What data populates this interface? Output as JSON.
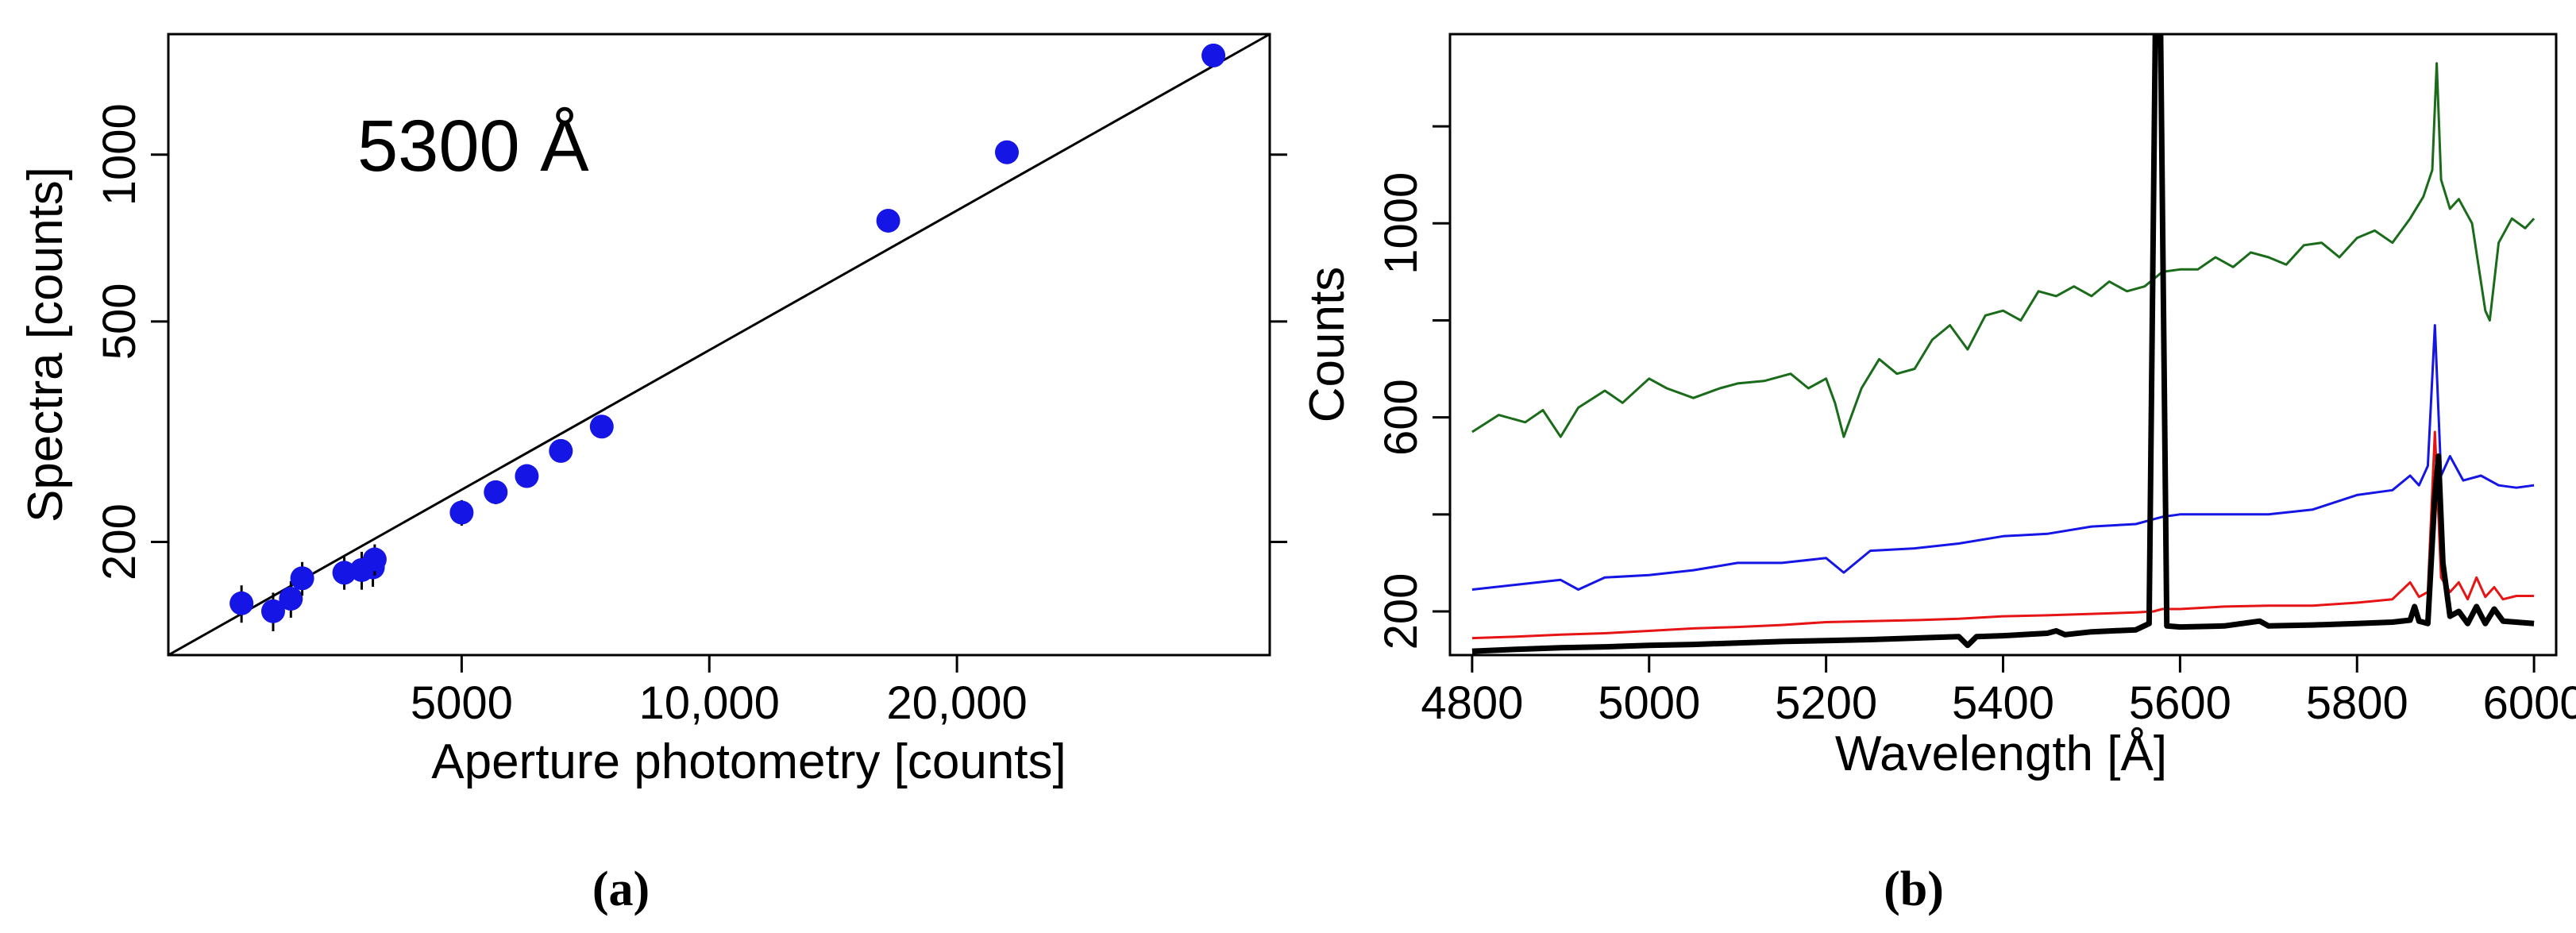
{
  "charts": {
    "a": {
      "caption": "(a)",
      "annotation": "5300 Å",
      "xlabel": "Aperture photometry [counts]",
      "ylabel": "Spectra [counts]",
      "xticks": [
        {
          "value": 5000,
          "label": "5000"
        },
        {
          "value": 10000,
          "label": "10,000"
        },
        {
          "value": 20000,
          "label": "20,000"
        }
      ],
      "yticks": [
        {
          "value": 200,
          "label": "200"
        },
        {
          "value": 500,
          "label": "500"
        },
        {
          "value": 1000,
          "label": "1000"
        }
      ]
    },
    "b": {
      "caption": "(b)",
      "xlabel": "Wavelength [Å]",
      "ylabel": "Counts",
      "xticks": [
        {
          "value": 4800,
          "label": "4800"
        },
        {
          "value": 5000,
          "label": "5000"
        },
        {
          "value": 5200,
          "label": "5200"
        },
        {
          "value": 5400,
          "label": "5400"
        },
        {
          "value": 5600,
          "label": "5600"
        },
        {
          "value": 5800,
          "label": "5800"
        },
        {
          "value": 6000,
          "label": "6000"
        }
      ],
      "yticks": [
        {
          "value": 200,
          "label": "200"
        },
        {
          "value": 400,
          "label": ""
        },
        {
          "value": 600,
          "label": "600"
        },
        {
          "value": 800,
          "label": ""
        },
        {
          "value": 1000,
          "label": "1000"
        },
        {
          "value": 1200,
          "label": ""
        }
      ]
    }
  },
  "chart_data": [
    {
      "type": "scatter",
      "title": "",
      "annotation": "5300 Å",
      "xlabel": "Aperture photometry [counts]",
      "ylabel": "Spectra [counts]",
      "xscale": "log",
      "yscale": "log",
      "xlim": [
        2200,
        48000
      ],
      "ylim": [
        125,
        1650
      ],
      "grid": false,
      "points": [
        {
          "x": 2700,
          "y": 155,
          "err": 12
        },
        {
          "x": 2950,
          "y": 150,
          "err": 12
        },
        {
          "x": 3100,
          "y": 158,
          "err": 12
        },
        {
          "x": 3200,
          "y": 172,
          "err": 12
        },
        {
          "x": 3600,
          "y": 176,
          "err": 12
        },
        {
          "x": 3780,
          "y": 178,
          "err": 14
        },
        {
          "x": 3900,
          "y": 180,
          "err": 14
        },
        {
          "x": 3920,
          "y": 186,
          "err": 12
        },
        {
          "x": 5000,
          "y": 226,
          "err": 12
        },
        {
          "x": 5500,
          "y": 246,
          "err": 12
        },
        {
          "x": 6000,
          "y": 263,
          "err": 12
        },
        {
          "x": 6600,
          "y": 292,
          "err": 12
        },
        {
          "x": 7400,
          "y": 323,
          "err": 12
        },
        {
          "x": 16500,
          "y": 760,
          "err": 12
        },
        {
          "x": 23000,
          "y": 1010,
          "err": 12
        },
        {
          "x": 41000,
          "y": 1510,
          "err": 12
        }
      ],
      "fit_line": {
        "x": [
          2200,
          48000
        ],
        "y": [
          125,
          1650
        ]
      },
      "marker_color": "#1515e6"
    },
    {
      "type": "line",
      "title": "",
      "xlabel": "Wavelength [Å]",
      "ylabel": "Counts",
      "xlim": [
        4775,
        6025
      ],
      "ylim": [
        110,
        1390
      ],
      "grid": false,
      "series": [
        {
          "color": "#1a6b1a",
          "width": 3,
          "x": [
            4800,
            4830,
            4860,
            4880,
            4900,
            4920,
            4950,
            4970,
            5000,
            5020,
            5050,
            5080,
            5100,
            5130,
            5160,
            5180,
            5200,
            5210,
            5220,
            5240,
            5260,
            5280,
            5300,
            5320,
            5340,
            5360,
            5380,
            5400,
            5420,
            5440,
            5460,
            5480,
            5500,
            5520,
            5540,
            5560,
            5580,
            5600,
            5620,
            5640,
            5660,
            5680,
            5700,
            5720,
            5740,
            5760,
            5780,
            5800,
            5820,
            5840,
            5860,
            5875,
            5885,
            5890,
            5895,
            5905,
            5915,
            5930,
            5945,
            5950,
            5960,
            5975,
            5990,
            6000
          ],
          "y": [
            570,
            605,
            590,
            615,
            560,
            620,
            655,
            630,
            680,
            660,
            640,
            660,
            670,
            675,
            690,
            660,
            680,
            630,
            560,
            660,
            720,
            690,
            700,
            760,
            790,
            740,
            810,
            820,
            800,
            860,
            850,
            870,
            850,
            880,
            860,
            870,
            900,
            905,
            905,
            930,
            910,
            940,
            930,
            915,
            955,
            960,
            930,
            970,
            985,
            960,
            1010,
            1055,
            1110,
            1330,
            1090,
            1030,
            1050,
            1000,
            820,
            800,
            960,
            1010,
            990,
            1010
          ]
        },
        {
          "color": "#1515e6",
          "width": 3,
          "x": [
            4800,
            4850,
            4900,
            4920,
            4950,
            5000,
            5050,
            5100,
            5150,
            5200,
            5220,
            5250,
            5300,
            5350,
            5400,
            5450,
            5500,
            5550,
            5570,
            5580,
            5600,
            5650,
            5700,
            5750,
            5800,
            5840,
            5860,
            5870,
            5880,
            5888,
            5895,
            5905,
            5920,
            5940,
            5960,
            5980,
            6000
          ],
          "y": [
            245,
            255,
            265,
            245,
            270,
            275,
            285,
            300,
            300,
            310,
            280,
            325,
            330,
            340,
            355,
            360,
            375,
            380,
            390,
            395,
            400,
            400,
            400,
            410,
            440,
            450,
            480,
            460,
            500,
            790,
            480,
            520,
            470,
            480,
            460,
            455,
            460
          ]
        },
        {
          "color": "#e61414",
          "width": 3,
          "x": [
            4800,
            4850,
            4900,
            4950,
            5000,
            5050,
            5100,
            5150,
            5200,
            5250,
            5300,
            5350,
            5400,
            5450,
            5500,
            5550,
            5570,
            5580,
            5600,
            5650,
            5700,
            5750,
            5800,
            5840,
            5860,
            5870,
            5880,
            5888,
            5895,
            5905,
            5915,
            5925,
            5935,
            5945,
            5955,
            5965,
            5980,
            6000
          ],
          "y": [
            145,
            148,
            152,
            155,
            160,
            165,
            168,
            172,
            178,
            180,
            182,
            185,
            190,
            192,
            195,
            198,
            200,
            205,
            205,
            210,
            212,
            212,
            218,
            225,
            260,
            230,
            240,
            570,
            270,
            240,
            260,
            225,
            270,
            230,
            250,
            225,
            232,
            232
          ]
        },
        {
          "color": "#000000",
          "width": 7,
          "x": [
            4800,
            4850,
            4900,
            4950,
            5000,
            5050,
            5100,
            5150,
            5200,
            5250,
            5300,
            5350,
            5360,
            5370,
            5400,
            5450,
            5460,
            5470,
            5500,
            5550,
            5565,
            5572,
            5575,
            5578,
            5585,
            5600,
            5650,
            5690,
            5700,
            5750,
            5800,
            5840,
            5860,
            5865,
            5870,
            5880,
            5888,
            5892,
            5897,
            5905,
            5915,
            5925,
            5935,
            5945,
            5955,
            5965,
            5980,
            6000
          ],
          "y": [
            118,
            122,
            125,
            127,
            130,
            132,
            135,
            138,
            140,
            142,
            145,
            148,
            130,
            148,
            150,
            155,
            160,
            152,
            158,
            162,
            175,
            1390,
            1390,
            1390,
            170,
            168,
            170,
            180,
            170,
            172,
            175,
            178,
            182,
            210,
            180,
            175,
            440,
            520,
            300,
            190,
            200,
            175,
            210,
            175,
            205,
            180,
            178,
            175
          ]
        }
      ]
    }
  ]
}
